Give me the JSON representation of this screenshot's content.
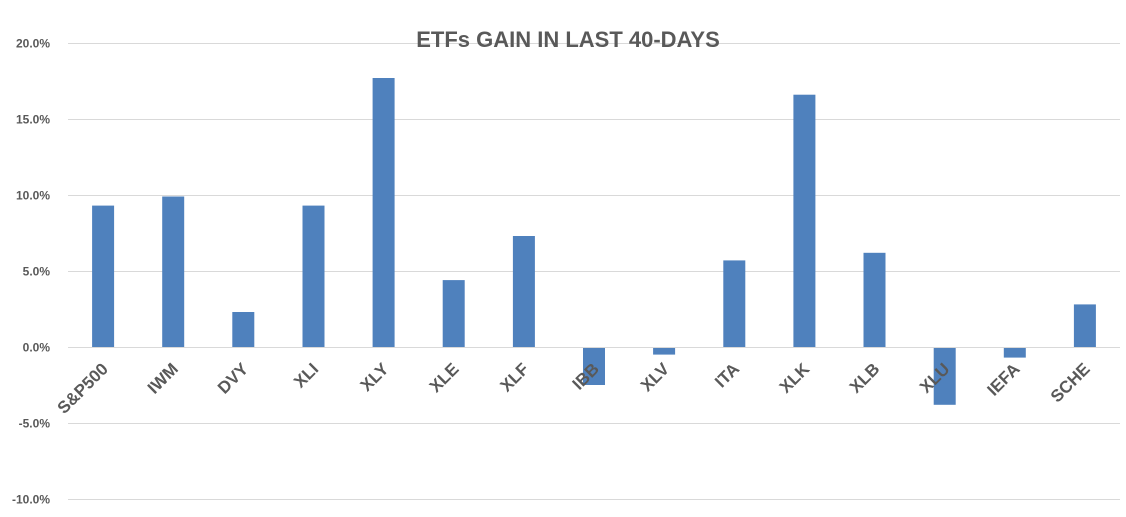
{
  "chart_data": {
    "type": "bar",
    "title": "ETFs GAIN IN LAST 40-DAYS",
    "xlabel": "",
    "ylabel": "",
    "categories": [
      "S&P500",
      "IWM",
      "DVY",
      "XLI",
      "XLY",
      "XLE",
      "XLF",
      "IBB",
      "XLV",
      "ITA",
      "XLK",
      "XLB",
      "XLU",
      "IEFA",
      "SCHE"
    ],
    "values": [
      9.3,
      9.9,
      2.3,
      9.3,
      17.7,
      4.4,
      7.3,
      -2.5,
      -0.5,
      5.7,
      16.6,
      6.2,
      -3.8,
      -0.7,
      2.8
    ],
    "ylim": [
      -10,
      20
    ],
    "yticks": [
      20,
      15,
      10,
      5,
      0,
      -5,
      -10
    ],
    "ytick_labels": [
      "20.0%",
      "15.0%",
      "10.0%",
      "5.0%",
      "0.0%",
      "-5.0%",
      "-10.0%"
    ],
    "grid": true,
    "legend": "none",
    "bar_color": "#4f81bd"
  }
}
